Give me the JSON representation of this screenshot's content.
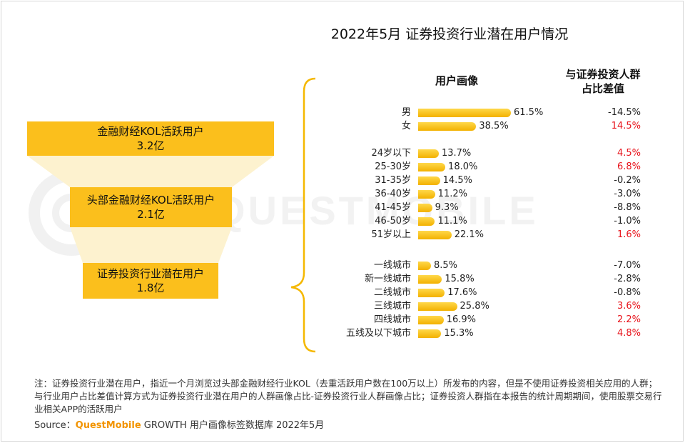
{
  "title": "2022年5月 证券投资行业潜在用户情况",
  "watermark": "QUESTMOBILE",
  "funnel": [
    {
      "name": "金融财经KOL活跃用户",
      "value": "3.2亿"
    },
    {
      "name": "头部金融财经KOL活跃用户",
      "value": "2.1亿"
    },
    {
      "name": "证券投资行业潜在用户",
      "value": "1.8亿"
    }
  ],
  "headers": {
    "profile": "用户画像",
    "diff_line1": "与证券投资人群",
    "diff_line2": "占比差值"
  },
  "chart_data": {
    "type": "bar",
    "orientation": "horizontal",
    "title": "2022年5月 证券投资行业潜在用户情况",
    "xlim": [
      0,
      70
    ],
    "groups": [
      {
        "categories": [
          "男",
          "女"
        ],
        "values": [
          61.5,
          38.5
        ],
        "value_labels": [
          "61.5%",
          "38.5%"
        ],
        "diff": [
          "-14.5%",
          "14.5%"
        ]
      },
      {
        "categories": [
          "24岁以下",
          "25-30岁",
          "31-35岁",
          "36-40岁",
          "41-45岁",
          "46-50岁",
          "51岁以上"
        ],
        "values": [
          13.7,
          18.0,
          14.5,
          11.2,
          9.3,
          11.1,
          22.1
        ],
        "value_labels": [
          "13.7%",
          "18.0%",
          "14.5%",
          "11.2%",
          "9.3%",
          "11.1%",
          "22.1%"
        ],
        "diff": [
          "4.5%",
          "6.8%",
          "-0.2%",
          "-3.0%",
          "-8.8%",
          "-1.0%",
          "1.6%"
        ]
      },
      {
        "categories": [
          "一线城市",
          "新一线城市",
          "二线城市",
          "三线城市",
          "四线城市",
          "五线及以下城市"
        ],
        "values": [
          8.5,
          15.8,
          17.6,
          25.8,
          16.9,
          15.3
        ],
        "value_labels": [
          "8.5%",
          "15.8%",
          "17.6%",
          "25.8%",
          "16.9%",
          "15.3%"
        ],
        "diff": [
          "-7.0%",
          "-2.8%",
          "-0.8%",
          "3.6%",
          "2.2%",
          "4.8%"
        ]
      }
    ]
  },
  "colors": {
    "bar_top": "#ffd84a",
    "bar_bottom": "#f3b100",
    "funnel": "#fbbf1c",
    "funnel_fill": "#fdf2cf",
    "positive": "#e8141c",
    "negative": "#222222",
    "brand": "#f29400"
  },
  "note": "注：证券投资行业潜在用户，指近一个月浏览过头部金融财经行业KOL（去重活跃用户数在100万以上）所发布的内容，但是不使用证券投资相关应用的人群；与行业用户占比差值计算方式为证券投资行业潜在用户的人群画像占比-证券投资行业人群画像占比；证券投资人群指在本报告的统计周期期间，使用股票交易行业相关APP的活跃用户",
  "source": {
    "prefix": "Source：",
    "brand": "QuestMobile",
    "text": " GROWTH 用户画像标签数据库 2022年5月"
  }
}
